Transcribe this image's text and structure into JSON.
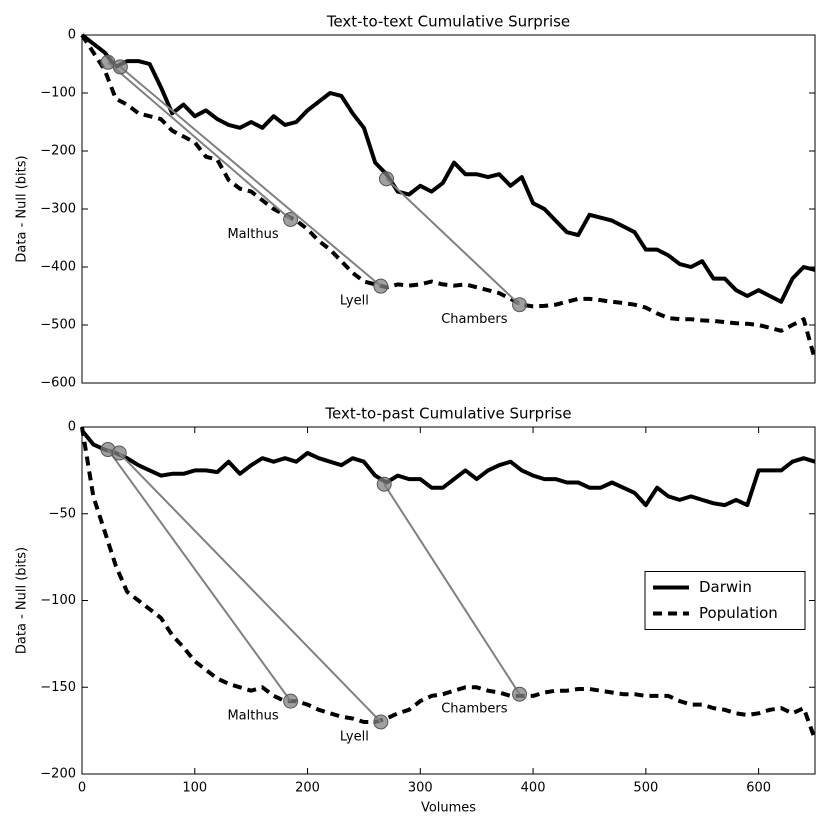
{
  "chart_data": [
    {
      "type": "line",
      "title": "Text-to-text Cumulative Surprise",
      "ylabel": "Data - Null (bits)",
      "x": [
        0,
        10,
        20,
        30,
        40,
        50,
        60,
        70,
        80,
        90,
        100,
        110,
        120,
        130,
        140,
        150,
        160,
        170,
        180,
        190,
        200,
        210,
        220,
        230,
        240,
        250,
        260,
        270,
        280,
        290,
        300,
        310,
        320,
        330,
        340,
        350,
        360,
        370,
        380,
        390,
        400,
        410,
        420,
        430,
        440,
        450,
        460,
        470,
        480,
        490,
        500,
        510,
        520,
        530,
        540,
        550,
        560,
        570,
        580,
        590,
        600,
        610,
        620,
        630,
        640,
        650
      ],
      "series": [
        {
          "name": "Darwin",
          "color": "#000000",
          "dash": "solid",
          "values": [
            0,
            -15,
            -30,
            -55,
            -45,
            -45,
            -50,
            -90,
            -135,
            -120,
            -140,
            -130,
            -145,
            -155,
            -160,
            -150,
            -160,
            -140,
            -155,
            -150,
            -130,
            -115,
            -100,
            -105,
            -135,
            -160,
            -220,
            -240,
            -270,
            -275,
            -260,
            -270,
            -255,
            -220,
            -240,
            -240,
            -245,
            -240,
            -260,
            -245,
            -290,
            -300,
            -320,
            -340,
            -345,
            -310,
            -315,
            -320,
            -330,
            -340,
            -370,
            -370,
            -380,
            -395,
            -400,
            -390,
            -420,
            -420,
            -440,
            -450,
            -440,
            -450,
            -460,
            -420,
            -400,
            -405
          ]
        },
        {
          "name": "Population",
          "color": "#000000",
          "dash": "dashed",
          "values": [
            0,
            -30,
            -60,
            -110,
            -120,
            -135,
            -140,
            -145,
            -165,
            -175,
            -185,
            -210,
            -215,
            -250,
            -265,
            -270,
            -285,
            -300,
            -310,
            -320,
            -335,
            -355,
            -370,
            -390,
            -410,
            -425,
            -430,
            -435,
            -430,
            -432,
            -430,
            -425,
            -430,
            -432,
            -430,
            -435,
            -440,
            -445,
            -455,
            -465,
            -468,
            -467,
            -465,
            -460,
            -455,
            -455,
            -457,
            -460,
            -462,
            -465,
            -470,
            -480,
            -488,
            -490,
            -490,
            -492,
            -493,
            -495,
            -497,
            -498,
            -500,
            -505,
            -510,
            -500,
            -490,
            -560
          ]
        }
      ],
      "annotations": [
        {
          "label": "Malthus",
          "from": [
            23,
            -47
          ],
          "to": [
            185,
            -318
          ]
        },
        {
          "label": "Lyell",
          "from": [
            34,
            -55
          ],
          "to": [
            265,
            -433
          ]
        },
        {
          "label": "Chambers",
          "from": [
            270,
            -248
          ],
          "to": [
            388,
            -465
          ]
        }
      ],
      "xlim": [
        0,
        650
      ],
      "ylim": [
        -600,
        0
      ],
      "yticks": [
        0,
        {
          "value": -100,
          "label": "−100"
        },
        {
          "value": -200,
          "label": "−200"
        },
        {
          "value": -300,
          "label": "−300"
        },
        {
          "value": -400,
          "label": "−400"
        },
        {
          "value": -500,
          "label": "−500"
        },
        {
          "value": -600,
          "label": "−600"
        }
      ]
    },
    {
      "type": "line",
      "title": "Text-to-past Cumulative Surprise",
      "ylabel": "Data - Null (bits)",
      "xlabel": "Volumes",
      "x": [
        0,
        10,
        20,
        30,
        40,
        50,
        60,
        70,
        80,
        90,
        100,
        110,
        120,
        130,
        140,
        150,
        160,
        170,
        180,
        190,
        200,
        210,
        220,
        230,
        240,
        250,
        260,
        270,
        280,
        290,
        300,
        310,
        320,
        330,
        340,
        350,
        360,
        370,
        380,
        390,
        400,
        410,
        420,
        430,
        440,
        450,
        460,
        470,
        480,
        490,
        500,
        510,
        520,
        530,
        540,
        550,
        560,
        570,
        580,
        590,
        600,
        610,
        620,
        630,
        640,
        650
      ],
      "series": [
        {
          "name": "Darwin",
          "color": "#000000",
          "dash": "solid",
          "values": [
            -2,
            -10,
            -13,
            -15,
            -18,
            -22,
            -25,
            -28,
            -27,
            -27,
            -25,
            -25,
            -26,
            -20,
            -27,
            -22,
            -18,
            -20,
            -18,
            -20,
            -15,
            -18,
            -20,
            -22,
            -18,
            -20,
            -28,
            -32,
            -28,
            -30,
            -30,
            -35,
            -35,
            -30,
            -25,
            -30,
            -25,
            -22,
            -20,
            -25,
            -28,
            -30,
            -30,
            -32,
            -32,
            -35,
            -35,
            -32,
            -35,
            -38,
            -45,
            -35,
            -40,
            -42,
            -40,
            -42,
            -44,
            -45,
            -42,
            -45,
            -25,
            -25,
            -25,
            -20,
            -18,
            -20
          ]
        },
        {
          "name": "Population",
          "color": "#000000",
          "dash": "dashed",
          "values": [
            0,
            -40,
            -60,
            -80,
            -95,
            -100,
            -105,
            -110,
            -120,
            -127,
            -135,
            -140,
            -145,
            -148,
            -150,
            -152,
            -150,
            -155,
            -158,
            -158,
            -160,
            -163,
            -165,
            -167,
            -168,
            -170,
            -170,
            -168,
            -165,
            -163,
            -158,
            -155,
            -154,
            -152,
            -150,
            -150,
            -152,
            -153,
            -155,
            -155,
            -155,
            -153,
            -152,
            -152,
            -151,
            -151,
            -152,
            -153,
            -154,
            -154,
            -155,
            -155,
            -155,
            -158,
            -160,
            -160,
            -162,
            -163,
            -165,
            -166,
            -165,
            -163,
            -162,
            -165,
            -162,
            -180
          ]
        }
      ],
      "annotations": [
        {
          "label": "Malthus",
          "from": [
            23,
            -13
          ],
          "to": [
            185,
            -158
          ]
        },
        {
          "label": "Lyell",
          "from": [
            33,
            -15
          ],
          "to": [
            265,
            -170
          ]
        },
        {
          "label": "Chambers",
          "from": [
            268,
            -33
          ],
          "to": [
            388,
            -154
          ]
        }
      ],
      "legend": "center right",
      "xlim": [
        0,
        650
      ],
      "ylim": [
        -200,
        0
      ],
      "xticks": [
        0,
        100,
        200,
        300,
        400,
        500,
        600
      ],
      "yticks": [
        0,
        {
          "value": -50,
          "label": "−50"
        },
        {
          "value": -100,
          "label": "−100"
        },
        {
          "value": -150,
          "label": "−150"
        },
        {
          "value": -200,
          "label": "−200"
        }
      ]
    }
  ]
}
